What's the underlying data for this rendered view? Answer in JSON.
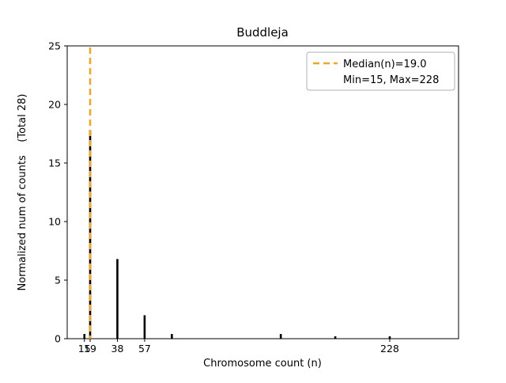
{
  "figure_title": "Buddleja",
  "chart_data": {
    "type": "bar",
    "title": "Buddleja",
    "xlabel": "Chromosome count (n)",
    "ylabel": "Normalized num of counts    (Total 28)",
    "total_counts": 28,
    "xlim": [
      3,
      276
    ],
    "ylim": [
      0,
      25
    ],
    "x_ticks": [
      15,
      19,
      38,
      57,
      228
    ],
    "y_ticks": [
      0,
      5,
      10,
      15,
      20,
      25
    ],
    "grid": false,
    "bars": [
      {
        "n": 15,
        "value": 0.4
      },
      {
        "n": 19,
        "value": 17.8
      },
      {
        "n": 38,
        "value": 6.8
      },
      {
        "n": 57,
        "value": 2.0
      },
      {
        "n": 76,
        "value": 0.4
      },
      {
        "n": 152,
        "value": 0.4
      },
      {
        "n": 190,
        "value": 0.2
      },
      {
        "n": 228,
        "value": 0.2
      }
    ],
    "median_line": {
      "n": 19,
      "value_label": "19.0"
    },
    "stats": {
      "median": 19.0,
      "min": 15,
      "max": 228
    },
    "legend": {
      "position": "upper right",
      "entries": [
        {
          "label": "Median(n)=19.0",
          "sample": "dashed-line"
        },
        {
          "label": "Min=15, Max=228",
          "sample": "none"
        }
      ]
    },
    "colors": {
      "bar": "#000000",
      "median_line": "#f0a62c",
      "axis": "#000000",
      "legend_border": "#b0b0b0",
      "background": "#ffffff"
    }
  }
}
